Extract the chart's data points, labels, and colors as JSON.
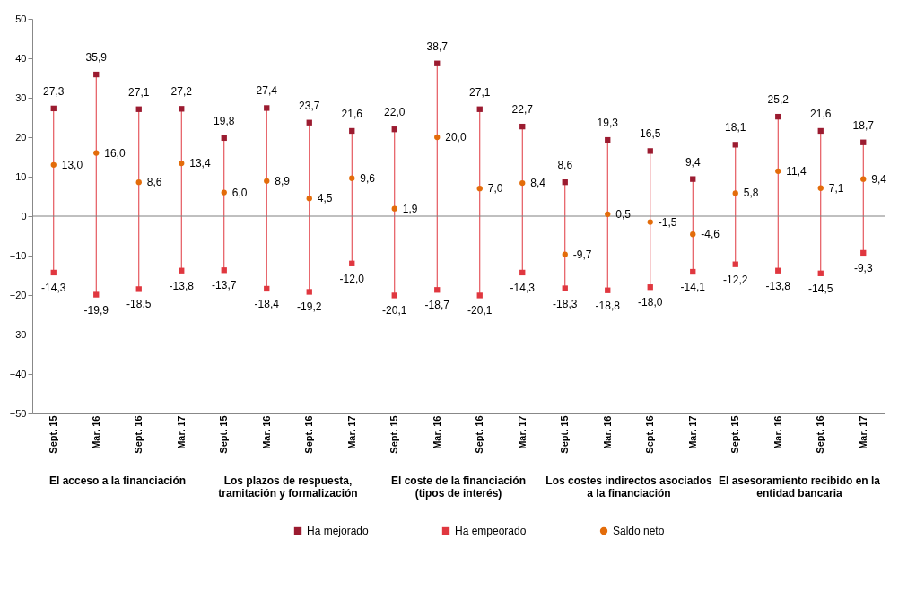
{
  "chart_data": {
    "type": "scatter",
    "categories": [
      "Sept. 15",
      "Mar. 16",
      "Sept. 16",
      "Mar. 17",
      "Sept. 15",
      "Mar. 16",
      "Sept. 16",
      "Mar. 17",
      "Sept. 15",
      "Mar. 16",
      "Sept. 16",
      "Mar. 17",
      "Sept. 15",
      "Mar. 16",
      "Sept. 16",
      "Mar. 17",
      "Sept. 15",
      "Mar. 16",
      "Sept. 16",
      "Mar. 17"
    ],
    "annotations": [
      "El acceso a la financiación",
      "Los plazos de respuesta, tramitación y formalización",
      "El coste de la financiación (tipos de interés)",
      "Los costes indirectos asociados a la financiación",
      "El asesoramiento recibido en la entidad bancaria"
    ],
    "series": [
      {
        "name": "Ha mejorado",
        "color": "#9b1b30",
        "marker": "square",
        "values": [
          27.3,
          35.9,
          27.1,
          27.2,
          19.8,
          27.4,
          23.7,
          21.6,
          22.0,
          38.7,
          27.1,
          22.7,
          8.6,
          19.3,
          16.5,
          9.4,
          18.1,
          25.2,
          21.6,
          18.7
        ],
        "value_labels": [
          "27,3",
          "35,9",
          "27,1",
          "27,2",
          "19,8",
          "27,4",
          "23,7",
          "21,6",
          "22,0",
          "38,7",
          "27,1",
          "22,7",
          "8,6",
          "19,3",
          "16,5",
          "9,4",
          "18,1",
          "25,2",
          "21,6",
          "18,7"
        ]
      },
      {
        "name": "Ha empeorado",
        "color": "#e0373f",
        "marker": "square",
        "values": [
          -14.3,
          -19.9,
          -18.5,
          -13.8,
          -13.7,
          -18.4,
          -19.2,
          -12.0,
          -20.1,
          -18.7,
          -20.1,
          -14.3,
          -18.3,
          -18.8,
          -18.0,
          -14.1,
          -12.2,
          -13.8,
          -14.5,
          -9.3
        ],
        "value_labels": [
          "-14,3",
          "-19,9",
          "-18,5",
          "-13,8",
          "-13,7",
          "-18,4",
          "-19,2",
          "-12,0",
          "-20,1",
          "-18,7",
          "-20,1",
          "-14,3",
          "-18,3",
          "-18,8",
          "-18,0",
          "-14,1",
          "-12,2",
          "-13,8",
          "-14,5",
          "-9,3"
        ]
      },
      {
        "name": "Saldo neto",
        "color": "#e36c0a",
        "marker": "circle",
        "values": [
          13.0,
          16.0,
          8.6,
          13.4,
          6.0,
          8.9,
          4.5,
          9.6,
          1.9,
          20.0,
          7.0,
          8.4,
          -9.7,
          0.5,
          -1.5,
          -4.6,
          5.8,
          11.4,
          7.1,
          9.4
        ],
        "value_labels": [
          "13,0",
          "16,0",
          "8,6",
          "13,4",
          "6,0",
          "8,9",
          "4,5",
          "9,6",
          "1,9",
          "20,0",
          "7,0",
          "8,4",
          "-9,7",
          "0,5",
          "-1,5",
          "-4,6",
          "5,8",
          "11,4",
          "7,1",
          "9,4"
        ]
      }
    ],
    "ylim": [
      -50,
      50
    ],
    "yticks": [
      -50,
      -40,
      -30,
      -20,
      -10,
      0,
      10,
      20,
      30,
      40,
      50
    ],
    "ref_lines": [
      {
        "axis": "y",
        "value": 0,
        "color": "#808080"
      }
    ],
    "grid": false,
    "legend": "bottom"
  }
}
